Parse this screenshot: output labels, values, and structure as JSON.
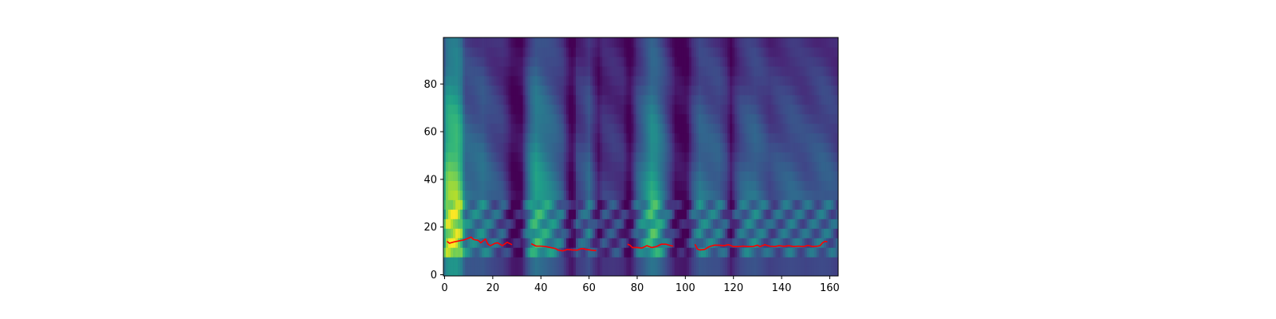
{
  "chart_data": {
    "type": "heatmap",
    "title": "",
    "xlabel": "",
    "ylabel": "",
    "xlim": [
      -0.5,
      163.5
    ],
    "ylim": [
      -0.5,
      99.5
    ],
    "x_ticks": [
      0,
      20,
      40,
      60,
      80,
      100,
      120,
      140,
      160
    ],
    "x_tick_labels": [
      "0",
      "20",
      "40",
      "60",
      "80",
      "100",
      "120",
      "140",
      "160"
    ],
    "y_ticks": [
      0,
      20,
      40,
      60,
      80
    ],
    "y_tick_labels": [
      "0",
      "20",
      "40",
      "60",
      "80"
    ],
    "colormap": "viridis",
    "heatmap": {
      "columns": 164,
      "rows": 100,
      "column_energy": [
        [
          0,
          0.62
        ],
        [
          1,
          0.8
        ],
        [
          2,
          0.85
        ],
        [
          5,
          0.86
        ],
        [
          7,
          0.72
        ],
        [
          8,
          0.5
        ],
        [
          9,
          0.4
        ],
        [
          12,
          0.38
        ],
        [
          16,
          0.4
        ],
        [
          18,
          0.34
        ],
        [
          20,
          0.3
        ],
        [
          24,
          0.24
        ],
        [
          26,
          0.15
        ],
        [
          28,
          0.04
        ],
        [
          30,
          0.02
        ],
        [
          32,
          0.05
        ],
        [
          34,
          0.3
        ],
        [
          36,
          0.5
        ],
        [
          38,
          0.6
        ],
        [
          42,
          0.5
        ],
        [
          46,
          0.4
        ],
        [
          49,
          0.3
        ],
        [
          51,
          0.12
        ],
        [
          52,
          0.04
        ],
        [
          53,
          0.02
        ],
        [
          54,
          0.08
        ],
        [
          55,
          0.22
        ],
        [
          58,
          0.28
        ],
        [
          60,
          0.35
        ],
        [
          62,
          0.2
        ],
        [
          64,
          0.08
        ],
        [
          66,
          0.18
        ],
        [
          70,
          0.2
        ],
        [
          74,
          0.16
        ],
        [
          76,
          0.04
        ],
        [
          77,
          0.02
        ],
        [
          78,
          0.1
        ],
        [
          80,
          0.3
        ],
        [
          83,
          0.45
        ],
        [
          86,
          0.62
        ],
        [
          88,
          0.58
        ],
        [
          91,
          0.4
        ],
        [
          94,
          0.2
        ],
        [
          96,
          0.05
        ],
        [
          100,
          0.02
        ],
        [
          101,
          0.06
        ],
        [
          103,
          0.25
        ],
        [
          106,
          0.4
        ],
        [
          110,
          0.36
        ],
        [
          114,
          0.34
        ],
        [
          117,
          0.22
        ],
        [
          119,
          0.06
        ],
        [
          121,
          0.2
        ],
        [
          123,
          0.3
        ],
        [
          126,
          0.36
        ],
        [
          129,
          0.38
        ],
        [
          132,
          0.32
        ],
        [
          135,
          0.25
        ],
        [
          138,
          0.28
        ],
        [
          141,
          0.3
        ],
        [
          144,
          0.32
        ],
        [
          147,
          0.3
        ],
        [
          150,
          0.28
        ],
        [
          154,
          0.3
        ],
        [
          157,
          0.32
        ],
        [
          160,
          0.3
        ],
        [
          163,
          0.25
        ]
      ]
    },
    "series": [
      {
        "type": "line",
        "color": "#ff0000",
        "segments": [
          [
            [
              1,
              14
            ],
            [
              2,
              13.2
            ],
            [
              4,
              13.8
            ],
            [
              6,
              14.2
            ],
            [
              8,
              14.6
            ],
            [
              10,
              15.4
            ],
            [
              11,
              15.8
            ],
            [
              12,
              14.8
            ],
            [
              14,
              14.4
            ],
            [
              15,
              13.4
            ],
            [
              17,
              15
            ],
            [
              18,
              12.8
            ],
            [
              19,
              12.2
            ],
            [
              21,
              13.2
            ],
            [
              22,
              13.4
            ],
            [
              24,
              12.2
            ],
            [
              26,
              13.6
            ],
            [
              28,
              12.6
            ]
          ],
          [
            [
              36,
              13
            ],
            [
              38,
              12
            ],
            [
              40,
              12
            ],
            [
              42,
              11.8
            ],
            [
              44,
              11.4
            ],
            [
              46,
              11
            ],
            [
              47,
              10.4
            ],
            [
              49,
              10
            ],
            [
              51,
              10.6
            ],
            [
              53,
              10.4
            ],
            [
              55,
              10.3
            ],
            [
              57,
              11
            ],
            [
              59,
              10.6
            ],
            [
              61,
              10.3
            ],
            [
              63,
              10.1
            ]
          ],
          [
            [
              76,
              12.8
            ],
            [
              77,
              12.4
            ],
            [
              78,
              11.4
            ],
            [
              80,
              11.4
            ],
            [
              82,
              11.2
            ],
            [
              84,
              12.2
            ],
            [
              86,
              11.4
            ],
            [
              88,
              11.8
            ],
            [
              90,
              12.8
            ],
            [
              92,
              12.8
            ],
            [
              94,
              12.2
            ],
            [
              95,
              12
            ]
          ],
          [
            [
              104,
              12.8
            ],
            [
              105,
              10.8
            ],
            [
              106,
              10.4
            ],
            [
              108,
              10.6
            ],
            [
              110,
              11.8
            ],
            [
              112,
              12.4
            ],
            [
              114,
              12.4
            ],
            [
              116,
              12.2
            ],
            [
              118,
              12.6
            ],
            [
              120,
              11.8
            ],
            [
              122,
              11.8
            ],
            [
              124,
              12
            ],
            [
              126,
              11.8
            ],
            [
              128,
              11.8
            ],
            [
              130,
              12.4
            ],
            [
              131,
              11.8
            ],
            [
              133,
              12.6
            ],
            [
              135,
              12
            ],
            [
              137,
              11.8
            ],
            [
              139,
              12.2
            ],
            [
              141,
              11.9
            ],
            [
              143,
              12.2
            ],
            [
              145,
              11.8
            ],
            [
              147,
              12
            ],
            [
              149,
              11.8
            ],
            [
              151,
              12.3
            ],
            [
              153,
              11.8
            ],
            [
              155,
              12
            ],
            [
              156,
              12.2
            ],
            [
              157,
              13.4
            ],
            [
              158,
              14
            ],
            [
              159,
              13.8
            ]
          ]
        ]
      }
    ]
  }
}
